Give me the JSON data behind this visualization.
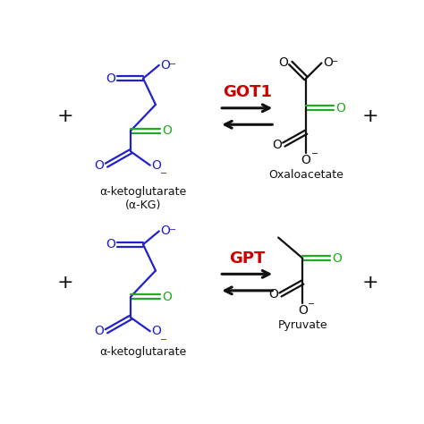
{
  "bg_color": "#ffffff",
  "blue_color": "#2222cc",
  "green_color": "#22aa22",
  "black_color": "#111111",
  "red_color": "#cc0000",
  "reaction1_enzyme": "GOT1",
  "reaction2_enzyme": "GPT",
  "label1_left": "α-ketoglutarate\n(α-KG)",
  "label1_right": "Oxaloacetate",
  "label2_left": "α-ketoglutarate",
  "label2_right": "Pyruvate"
}
